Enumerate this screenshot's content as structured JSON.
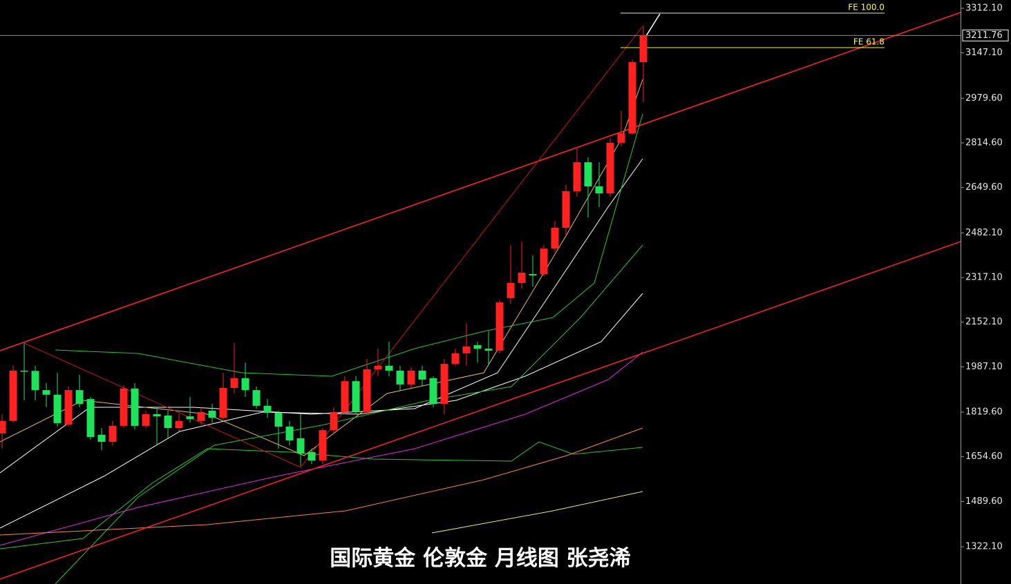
{
  "chart_data": {
    "type": "candlestick",
    "title": "国际黄金 伦敦金 月线图 张尧浠",
    "xlim": [
      -0.19,
      86.69
    ],
    "ylim": [
      1184.5,
      3342.7
    ],
    "yticks": [
      {
        "value": 3312.1,
        "label": "3312.10"
      },
      {
        "value": 3147.1,
        "label": "3147.10"
      },
      {
        "value": 2979.6,
        "label": "2979.60"
      },
      {
        "value": 2814.6,
        "label": "2814.60"
      },
      {
        "value": 2649.6,
        "label": "2649.60"
      },
      {
        "value": 2482.1,
        "label": "2482.10"
      },
      {
        "value": 2317.1,
        "label": "2317.10"
      },
      {
        "value": 2152.1,
        "label": "2152.10"
      },
      {
        "value": 1987.1,
        "label": "1987.10"
      },
      {
        "value": 1819.6,
        "label": "1819.60"
      },
      {
        "value": 1654.6,
        "label": "1654.60"
      },
      {
        "value": 1489.6,
        "label": "1489.60"
      },
      {
        "value": 1322.1,
        "label": "1322.10"
      }
    ],
    "up_color": "#ff2020",
    "down_color": "#1ee35a",
    "open": [
      1741,
      1787,
      1973,
      1972,
      1901,
      1884,
      1774,
      1901,
      1868,
      1736,
      1710,
      1769,
      1907,
      1769,
      1812,
      1807,
      1761,
      1804,
      1787,
      1825,
      1799,
      1909,
      1945,
      1901,
      1843,
      1817,
      1766,
      1723,
      1672,
      1641,
      1753,
      1820,
      1934,
      1820,
      1978,
      1991,
      1973,
      1922,
      1973,
      1945,
      1850,
      1998,
      2037,
      2067,
      2054,
      2047,
      2241,
      2297,
      2330,
      2330,
      2424,
      2501,
      2636,
      2743,
      2654,
      2628,
      2815,
      2850,
      3113
    ],
    "high": [
      1812,
      1991,
      2075,
      1991,
      1927,
      1965,
      1914,
      1958,
      1876,
      1761,
      1787,
      1919,
      1927,
      1825,
      1838,
      1825,
      1812,
      1876,
      1838,
      1850,
      1965,
      2075,
      2003,
      1914,
      1868,
      1825,
      1787,
      1812,
      1685,
      1761,
      1838,
      1952,
      1952,
      2016,
      2054,
      2080,
      1991,
      1986,
      1991,
      1952,
      2016,
      2054,
      2149,
      2080,
      2118,
      2233,
      2437,
      2450,
      2399,
      2437,
      2526,
      2659,
      2794,
      2761,
      2743,
      2832,
      2934,
      3121,
      3246
    ],
    "low": [
      1685,
      1781,
      1863,
      1863,
      1838,
      1766,
      1766,
      1838,
      1718,
      1679,
      1697,
      1761,
      1756,
      1761,
      1697,
      1723,
      1748,
      1781,
      1774,
      1781,
      1792,
      1889,
      1876,
      1832,
      1799,
      1685,
      1697,
      1621,
      1628,
      1628,
      1741,
      1812,
      1812,
      1812,
      1952,
      1952,
      1901,
      1909,
      1914,
      1838,
      1812,
      1991,
      1991,
      2003,
      1991,
      2037,
      2220,
      2276,
      2284,
      2322,
      2412,
      2475,
      2616,
      2539,
      2577,
      2616,
      2802,
      2845,
      2965
    ],
    "close": [
      1787,
      1973,
      1970,
      1901,
      1884,
      1779,
      1901,
      1850,
      1728,
      1710,
      1769,
      1907,
      1769,
      1812,
      1804,
      1761,
      1787,
      1794,
      1820,
      1799,
      1909,
      1945,
      1901,
      1843,
      1817,
      1766,
      1715,
      1667,
      1641,
      1753,
      1820,
      1934,
      1820,
      1978,
      1991,
      1973,
      1922,
      1973,
      1940,
      1850,
      1998,
      2037,
      2062,
      2054,
      2047,
      2225,
      2297,
      2335,
      2325,
      2424,
      2501,
      2636,
      2743,
      2654,
      2628,
      2815,
      2850,
      3113,
      3211.76
    ],
    "last_price": 3211.76,
    "overlays": [
      {
        "color": "#ffffff",
        "x": [
          -0.19,
          7.94,
          17.31,
          27.94,
          37.31,
          44.81,
          49.81,
          54.81,
          57.94
        ],
        "values": [
          1595.3,
          1837.6,
          1837.6,
          1812.1,
          1832.5,
          1965.2,
          2271.3,
          2577.4,
          2756.0
        ]
      },
      {
        "color": "#ffffff",
        "x": [
          -0.19,
          9.19,
          16.06,
          23.56,
          32.31,
          41.06,
          47.31,
          54.19,
          57.94
        ],
        "values": [
          1391.2,
          1582.5,
          1748.3,
          1819.7,
          1812.1,
          1863.1,
          1952.4,
          2080.0,
          2258.5
        ]
      },
      {
        "color": "#e8c040",
        "x": [
          -0.19,
          7.31,
          18.56,
          27.31,
          34.81,
          43.56,
          51.06,
          56.06,
          57.94
        ],
        "values": [
          1710.1,
          1863.1,
          1812.1,
          1659.1,
          1888.6,
          1965.2,
          2475.4,
          2832.5,
          3049.3
        ]
      },
      {
        "color": "#22cc22",
        "x": [
          4.81,
          12.31,
          21.69,
          29.81,
          37.31,
          43.56,
          49.81,
          53.56,
          56.06,
          57.94
        ],
        "values": [
          2049.3,
          2036.6,
          1965.2,
          1952.4,
          2054.4,
          2118.2,
          2169.2,
          2296.8,
          2653.9,
          2921.8
        ]
      },
      {
        "color": "#22cc22",
        "x": [
          4.81,
          12.31,
          19.19,
          29.19,
          38.56,
          46.06,
          52.31,
          57.94
        ],
        "values": [
          1184.5,
          1506.0,
          1697.3,
          1773.8,
          1863.1,
          1914.1,
          2169.2,
          2437.1
        ]
      },
      {
        "color": "#22cc22",
        "x": [
          -0.19,
          7.31,
          13.56,
          18.56,
          26.06,
          33.56,
          46.06,
          48.56,
          51.69,
          57.94
        ],
        "values": [
          1314.5,
          1352.9,
          1557.0,
          1684.6,
          1671.8,
          1646.3,
          1638.7,
          1710.1,
          1664.1,
          1689.7
        ]
      },
      {
        "color": "#ee22ee",
        "x": [
          -0.19,
          12.31,
          24.81,
          37.31,
          47.31,
          54.81,
          57.94
        ],
        "values": [
          1327.4,
          1467.8,
          1582.5,
          1684.6,
          1812.1,
          1939.6,
          2041.7
        ]
      },
      {
        "color": "#ff8833",
        "x": [
          -0.19,
          18.56,
          31.06,
          43.56,
          51.06,
          57.94
        ],
        "values": [
          1365.7,
          1403.9,
          1455.0,
          1569.8,
          1659.1,
          1761.1
        ]
      },
      {
        "color": "#eeee44",
        "x": [
          38.88,
          49.81,
          57.94
        ],
        "values": [
          1373.3,
          1455.0,
          1526.4
        ]
      },
      {
        "color": "#ff2222",
        "x": [
          -0.19,
          86.69
        ],
        "values": [
          2046.8,
          3296.8
        ]
      },
      {
        "color": "#ee2222",
        "x": [
          -0.19,
          86.69
        ],
        "values": [
          1202.5,
          2449.8
        ]
      },
      {
        "color": "#cc1111",
        "x": [
          2,
          27,
          57.94
        ],
        "values": [
          2074.9,
          1615.7,
          3245.8
        ]
      },
      {
        "color": "#ffffff",
        "x": [
          57.94,
          59.5
        ],
        "values": [
          3189.6,
          3291.7
        ]
      }
    ],
    "levels": [
      {
        "label": "FE 100.0",
        "value": 3294.2,
        "x": [
          55.94,
          79.81
        ],
        "color": "#e8e8c0"
      },
      {
        "label": "FE 61.8",
        "value": 3166.7,
        "x": [
          55.94,
          79.81
        ],
        "color": "#ffff00"
      }
    ]
  }
}
